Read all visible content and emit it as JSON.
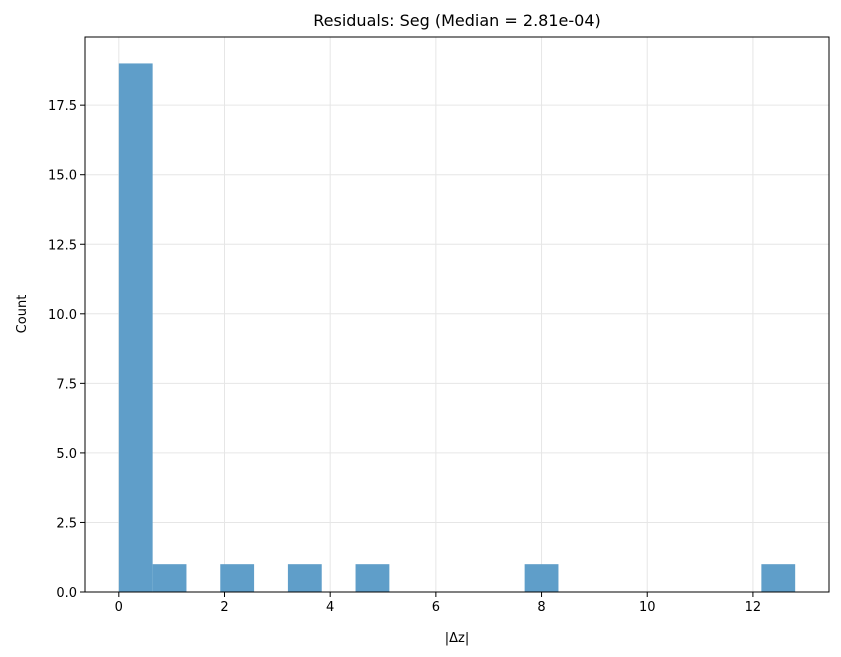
{
  "chart_data": {
    "type": "bar",
    "title": "Residuals: Seg (Median = 2.81e-04)",
    "xlabel": "|Δz|",
    "ylabel": "Count",
    "xlim": [
      -0.64,
      13.44
    ],
    "ylim": [
      0,
      19.95
    ],
    "x_ticks": [
      0,
      2,
      4,
      6,
      8,
      10,
      12
    ],
    "y_ticks": [
      0.0,
      2.5,
      5.0,
      7.5,
      10.0,
      12.5,
      15.0,
      17.5
    ],
    "y_tick_labels": [
      "0.0",
      "2.5",
      "5.0",
      "7.5",
      "10.0",
      "12.5",
      "15.0",
      "17.5"
    ],
    "grid": true,
    "bin_edges": [
      0.0,
      0.64,
      1.28,
      1.92,
      2.56,
      3.2,
      3.84,
      4.48,
      5.12,
      5.76,
      6.4,
      7.04,
      7.68,
      8.32,
      8.96,
      9.6,
      10.24,
      10.88,
      11.52,
      12.16,
      12.8
    ],
    "values": [
      19,
      1,
      0,
      1,
      0,
      1,
      0,
      1,
      0,
      0,
      0,
      0,
      1,
      0,
      0,
      0,
      0,
      0,
      0,
      1
    ],
    "bar_color": "#5f9ec9",
    "grid_color": "#e6e6e6"
  }
}
